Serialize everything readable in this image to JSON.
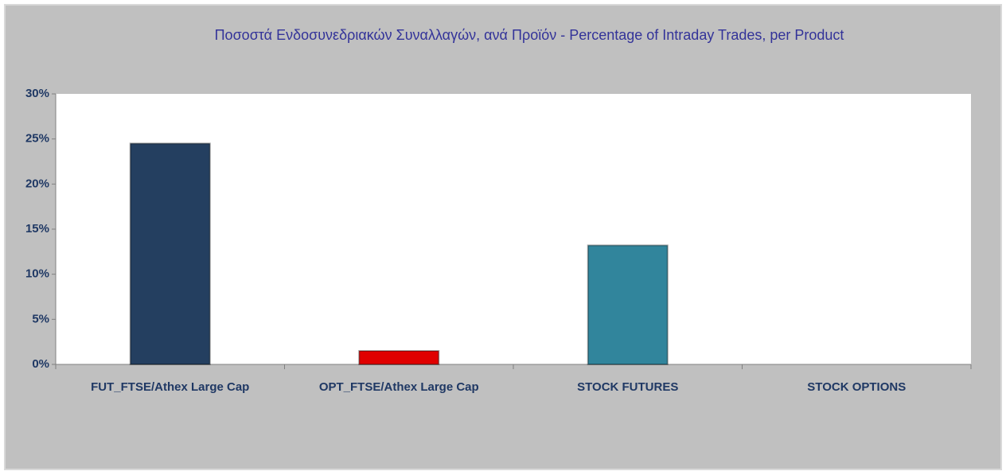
{
  "chart_data": {
    "type": "bar",
    "title": "Ποσοστά Ενδοσυνεδριακών Συναλλαγών, ανά Προϊόν - Percentage of Intraday Trades, per Product",
    "categories": [
      "FUT_FTSE/Athex Large Cap",
      "OPT_FTSE/Athex Large Cap",
      "STOCK FUTURES",
      "STOCK OPTIONS"
    ],
    "values": [
      24.5,
      1.5,
      13.2,
      0
    ],
    "colors": [
      "#243f60",
      "#e00000",
      "#31859c",
      "#31859c"
    ],
    "ylim": [
      0,
      30
    ],
    "yticks": [
      {
        "value": 0,
        "label": "0%"
      },
      {
        "value": 5,
        "label": "5%"
      },
      {
        "value": 10,
        "label": "10%"
      },
      {
        "value": 15,
        "label": "15%"
      },
      {
        "value": 20,
        "label": "20%"
      },
      {
        "value": 25,
        "label": "25%"
      },
      {
        "value": 30,
        "label": "30%"
      }
    ],
    "grid": false
  }
}
